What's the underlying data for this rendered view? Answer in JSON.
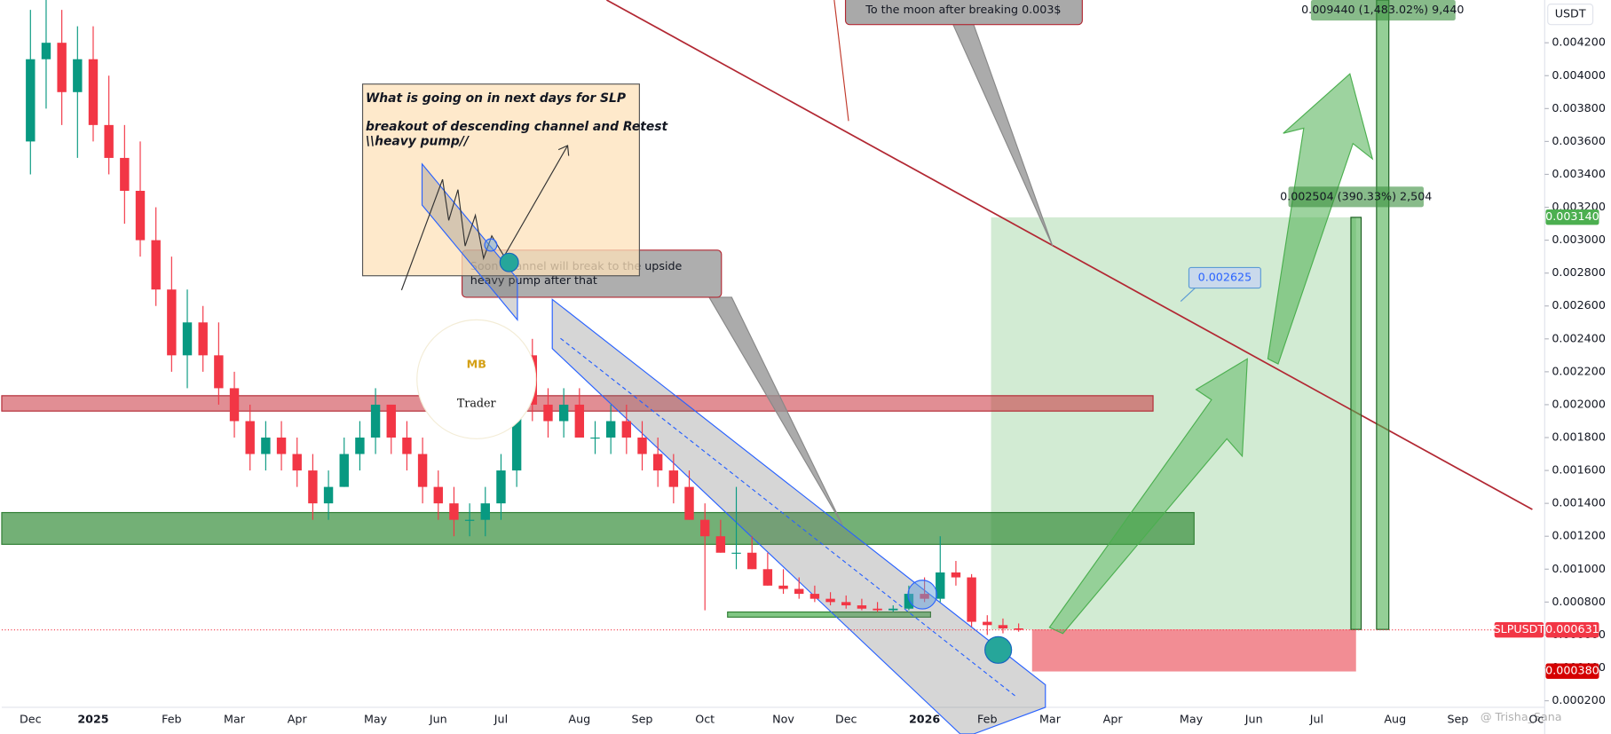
{
  "chart_data": {
    "type": "candlestick",
    "currency": "USDT",
    "symbol_label": "SLPUSDT",
    "categories": [
      "Dec",
      null,
      null,
      null,
      "2025",
      null,
      null,
      null,
      null,
      "Feb",
      null,
      null,
      null,
      "Mar",
      null,
      null,
      null,
      "Apr",
      null,
      null,
      null,
      null,
      "May",
      null,
      null,
      null,
      "Jun",
      null,
      null,
      null,
      "Jul",
      null,
      null,
      null,
      null,
      "Aug",
      null,
      null,
      null,
      "Sep",
      null,
      null,
      null,
      "Oct",
      null,
      null,
      null,
      null,
      "Nov",
      null,
      null,
      null,
      "Dec",
      null,
      null,
      null,
      null,
      "2026",
      null,
      null,
      null,
      "Feb",
      null,
      null,
      null,
      "Mar",
      null,
      null,
      null,
      "Apr",
      null,
      null,
      null,
      null,
      "May",
      null,
      null,
      null,
      "Jun",
      null,
      null,
      null,
      "Jul",
      null,
      null,
      null,
      null,
      "Aug",
      null,
      null,
      null,
      "Sep",
      null,
      null,
      null,
      null,
      "Oc"
    ],
    "ohlc": [
      [
        0.0036,
        0.0044,
        0.0034,
        0.0041
      ],
      [
        0.0041,
        0.0045,
        0.0038,
        0.0042
      ],
      [
        0.0042,
        0.0044,
        0.0037,
        0.0039
      ],
      [
        0.0039,
        0.0043,
        0.0035,
        0.0041
      ],
      [
        0.0041,
        0.0043,
        0.0036,
        0.0037
      ],
      [
        0.0037,
        0.004,
        0.0034,
        0.0035
      ],
      [
        0.0035,
        0.0037,
        0.0031,
        0.0033
      ],
      [
        0.0033,
        0.0036,
        0.0029,
        0.003
      ],
      [
        0.003,
        0.0032,
        0.0026,
        0.0027
      ],
      [
        0.0027,
        0.0029,
        0.0022,
        0.0023
      ],
      [
        0.0023,
        0.0027,
        0.0021,
        0.0025
      ],
      [
        0.0025,
        0.0026,
        0.0022,
        0.0023
      ],
      [
        0.0023,
        0.0025,
        0.002,
        0.0021
      ],
      [
        0.0021,
        0.0022,
        0.0018,
        0.0019
      ],
      [
        0.0019,
        0.002,
        0.0016,
        0.0017
      ],
      [
        0.0017,
        0.0019,
        0.0016,
        0.0018
      ],
      [
        0.0018,
        0.0019,
        0.0016,
        0.0017
      ],
      [
        0.0017,
        0.0018,
        0.0015,
        0.0016
      ],
      [
        0.0016,
        0.0017,
        0.0013,
        0.0014
      ],
      [
        0.0014,
        0.0016,
        0.0013,
        0.0015
      ],
      [
        0.0015,
        0.0018,
        0.0015,
        0.0017
      ],
      [
        0.0017,
        0.0019,
        0.0016,
        0.0018
      ],
      [
        0.0018,
        0.0021,
        0.0017,
        0.002
      ],
      [
        0.002,
        0.002,
        0.0017,
        0.0018
      ],
      [
        0.0018,
        0.0019,
        0.0016,
        0.0017
      ],
      [
        0.0017,
        0.0018,
        0.0014,
        0.0015
      ],
      [
        0.0015,
        0.0016,
        0.0013,
        0.0014
      ],
      [
        0.0014,
        0.0015,
        0.0012,
        0.0013
      ],
      [
        0.0013,
        0.0014,
        0.0012,
        0.0013
      ],
      [
        0.0013,
        0.0015,
        0.0012,
        0.0014
      ],
      [
        0.0014,
        0.0017,
        0.0013,
        0.0016
      ],
      [
        0.0016,
        0.0024,
        0.0015,
        0.0023
      ],
      [
        0.0023,
        0.0024,
        0.0019,
        0.002
      ],
      [
        0.002,
        0.0021,
        0.0018,
        0.0019
      ],
      [
        0.0019,
        0.0021,
        0.0018,
        0.002
      ],
      [
        0.002,
        0.0021,
        0.0018,
        0.0018
      ],
      [
        0.0018,
        0.0019,
        0.0017,
        0.0018
      ],
      [
        0.0018,
        0.002,
        0.0017,
        0.0019
      ],
      [
        0.0019,
        0.002,
        0.0017,
        0.0018
      ],
      [
        0.0018,
        0.0019,
        0.0016,
        0.0017
      ],
      [
        0.0017,
        0.0018,
        0.0015,
        0.0016
      ],
      [
        0.0016,
        0.0017,
        0.0014,
        0.0015
      ],
      [
        0.0015,
        0.0016,
        0.0013,
        0.0013
      ],
      [
        0.0013,
        0.0014,
        0.00075,
        0.0012
      ],
      [
        0.0012,
        0.0013,
        0.0011,
        0.0011
      ],
      [
        0.0011,
        0.0015,
        0.001,
        0.0011
      ],
      [
        0.0011,
        0.0012,
        0.001,
        0.001
      ],
      [
        0.001,
        0.0011,
        0.0009,
        0.0009
      ],
      [
        0.0009,
        0.001,
        0.00085,
        0.00088
      ],
      [
        0.00088,
        0.00095,
        0.00082,
        0.00085
      ],
      [
        0.00085,
        0.0009,
        0.0008,
        0.00082
      ],
      [
        0.00082,
        0.00086,
        0.00078,
        0.0008
      ],
      [
        0.0008,
        0.00084,
        0.00076,
        0.00078
      ],
      [
        0.00078,
        0.00082,
        0.00075,
        0.00076
      ],
      [
        0.00076,
        0.0008,
        0.00074,
        0.00075
      ],
      [
        0.00075,
        0.00078,
        0.00074,
        0.00076
      ],
      [
        0.00076,
        0.0009,
        0.00075,
        0.00085
      ],
      [
        0.00085,
        0.00095,
        0.0008,
        0.00082
      ],
      [
        0.00082,
        0.0012,
        0.0008,
        0.00098
      ],
      [
        0.00098,
        0.00105,
        0.0009,
        0.00095
      ],
      [
        0.00095,
        0.00097,
        0.00065,
        0.00068
      ],
      [
        0.00068,
        0.00072,
        0.0006,
        0.00066
      ],
      [
        0.00066,
        0.0007,
        0.00061,
        0.00064
      ],
      [
        0.00064,
        0.00067,
        0.00062,
        0.000631
      ],
      null,
      null,
      null,
      null,
      null,
      null,
      null,
      null,
      null,
      null,
      null,
      null,
      null,
      null,
      null,
      null,
      null,
      null,
      null,
      null,
      null,
      null,
      null,
      null,
      null,
      null,
      null,
      null,
      null,
      null,
      null,
      null,
      null
    ],
    "up_color": "#089981",
    "down_color": "#f23645",
    "ylim": [
      0.00016,
      0.00446
    ],
    "yticks": [
      {
        "value": 0.0002,
        "label": "0.000200"
      },
      {
        "value": 0.0004,
        "label": "0.000400"
      },
      {
        "value": 0.0006,
        "label": "0.000600"
      },
      {
        "value": 0.0008,
        "label": "0.000800"
      },
      {
        "value": 0.001,
        "label": "0.001000"
      },
      {
        "value": 0.0012,
        "label": "0.001200"
      },
      {
        "value": 0.0014,
        "label": "0.001400"
      },
      {
        "value": 0.0016,
        "label": "0.001600"
      },
      {
        "value": 0.0018,
        "label": "0.001800"
      },
      {
        "value": 0.002,
        "label": "0.002000"
      },
      {
        "value": 0.0022,
        "label": "0.002200"
      },
      {
        "value": 0.0024,
        "label": "0.002400"
      },
      {
        "value": 0.0026,
        "label": "0.002600"
      },
      {
        "value": 0.0028,
        "label": "0.002800"
      },
      {
        "value": 0.003,
        "label": "0.003000"
      },
      {
        "value": 0.0032,
        "label": "0.003200"
      },
      {
        "value": 0.0034,
        "label": "0.003400"
      },
      {
        "value": 0.0036,
        "label": "0.003600"
      },
      {
        "value": 0.0038,
        "label": "0.003800"
      },
      {
        "value": 0.004,
        "label": "0.004000"
      },
      {
        "value": 0.0042,
        "label": "0.004200"
      }
    ],
    "price_labels": [
      {
        "value": 0.00314,
        "label": "0.003140",
        "color": "#4caf50"
      },
      {
        "value": 0.000631,
        "label": "0.000631",
        "color": "#f23645"
      },
      {
        "value": 0.00038,
        "label": "0.000380",
        "color": "#d50000"
      }
    ],
    "annotations": {
      "moon": "To the moon after breaking 0.003$",
      "note_title": "What is going on in next days for SLP",
      "note_line1": "breakout of descending channel and Retest",
      "note_line2": "\\\\heavy pump//",
      "callout_line1": "Soon channel will break to the upside",
      "callout_line2": "heavy pump after that",
      "level": "0.002625",
      "measure1": "0.002504 (390.33%) 2,504",
      "measure2": "0.009440 (1,483.02%) 9,440",
      "logo_m": "MB",
      "logo_t": "Trader",
      "watermark": "@ Trisha_Sana"
    }
  }
}
